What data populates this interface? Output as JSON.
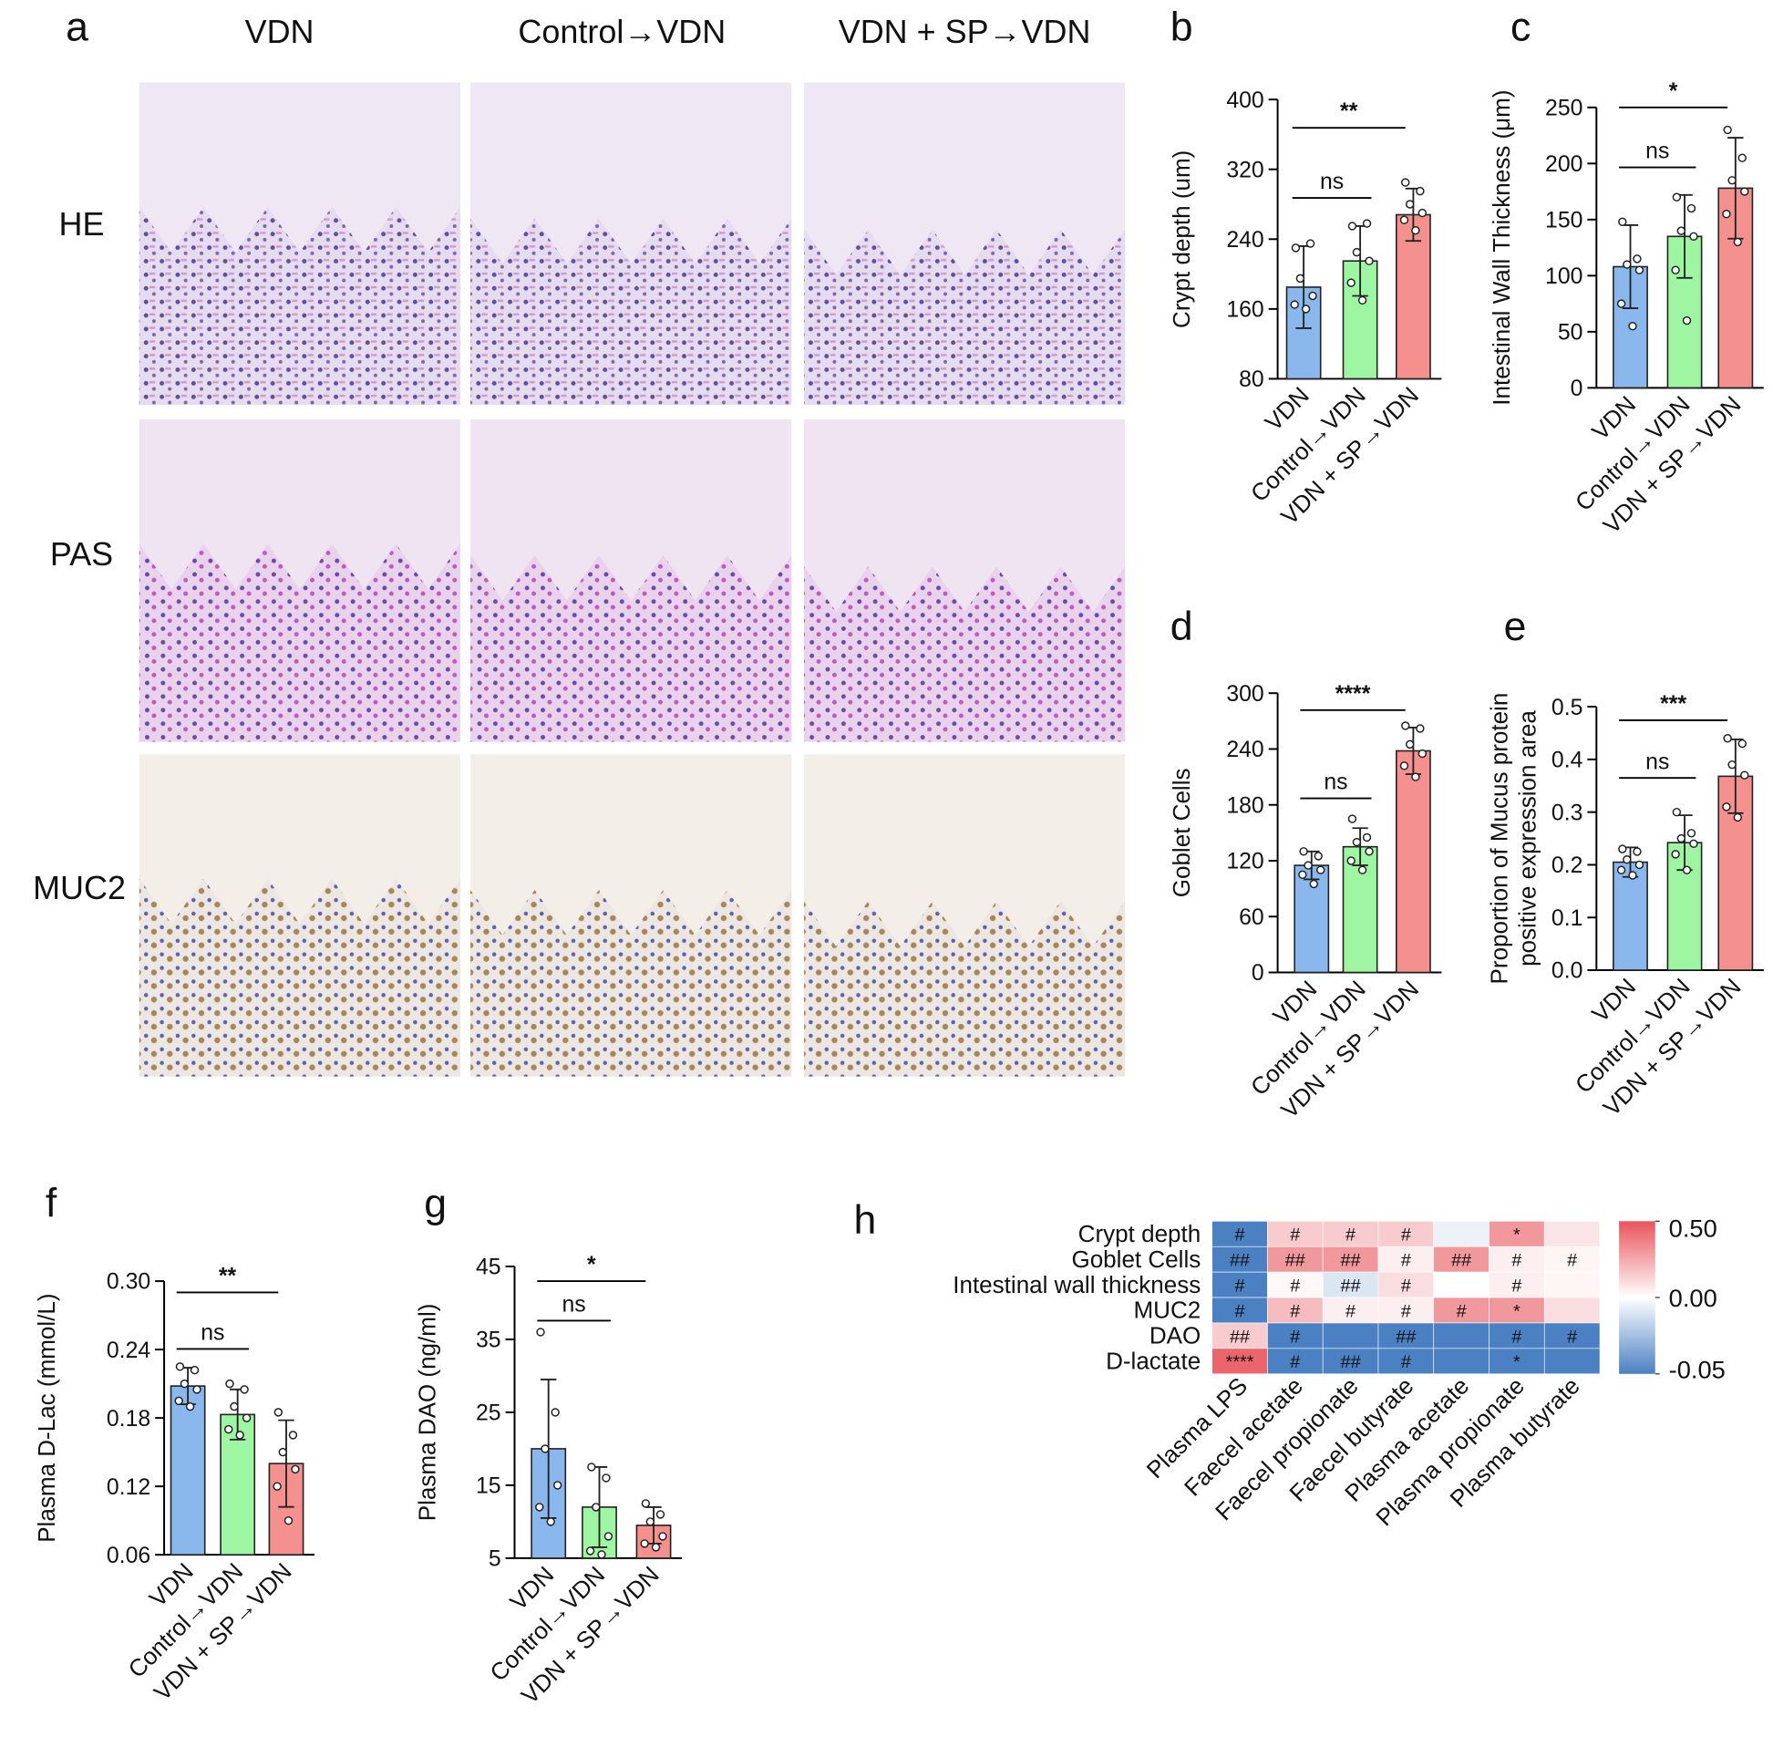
{
  "figure_a": {
    "panel": "a",
    "columns": [
      "VDN",
      "Control→VDN",
      "VDN + SP→VDN"
    ],
    "rows": [
      "HE",
      "PAS",
      "MUC2"
    ]
  },
  "chart_data": [
    {
      "type": "bar",
      "panel": "b",
      "ylabel": "Crypt depth (um)",
      "categories": [
        "VDN",
        "Control→VDN",
        "VDN + SP→VDN"
      ],
      "colors": [
        "#8ab8ec",
        "#9ef5a2",
        "#f4908e"
      ],
      "values": [
        185,
        215,
        268
      ],
      "errors": [
        47,
        40,
        30
      ],
      "points": [
        [
          230,
          235,
          195,
          175,
          165,
          160
        ],
        [
          255,
          258,
          225,
          215,
          190,
          170
        ],
        [
          305,
          295,
          280,
          270,
          262,
          250
        ]
      ],
      "ylim": [
        80,
        400
      ],
      "yticks": [
        80,
        160,
        240,
        320,
        400
      ],
      "annotations": [
        "**",
        "ns"
      ]
    },
    {
      "type": "bar",
      "panel": "c",
      "ylabel": "Intestinal Wall Thickness (μm)",
      "categories": [
        "VDN",
        "Control→VDN",
        "VDN + SP→VDN"
      ],
      "colors": [
        "#8ab8ec",
        "#9ef5a2",
        "#f4908e"
      ],
      "values": [
        108,
        135,
        178
      ],
      "errors": [
        37,
        37,
        45
      ],
      "points": [
        [
          148,
          115,
          110,
          105,
          75,
          55
        ],
        [
          170,
          160,
          140,
          135,
          105,
          60
        ],
        [
          230,
          205,
          185,
          175,
          155,
          130
        ]
      ],
      "ylim": [
        0,
        250
      ],
      "yticks": [
        0,
        50,
        100,
        150,
        200,
        250
      ],
      "annotations": [
        "*",
        "ns"
      ]
    },
    {
      "type": "bar",
      "panel": "d",
      "ylabel": "Goblet Cells",
      "categories": [
        "VDN",
        "Control→VDN",
        "VDN + SP→VDN"
      ],
      "colors": [
        "#8ab8ec",
        "#9ef5a2",
        "#f4908e"
      ],
      "values": [
        115,
        135,
        238
      ],
      "errors": [
        15,
        20,
        25
      ],
      "points": [
        [
          130,
          125,
          115,
          110,
          105,
          95
        ],
        [
          165,
          145,
          140,
          130,
          120,
          110
        ],
        [
          265,
          262,
          245,
          235,
          222,
          210
        ]
      ],
      "ylim": [
        0,
        300
      ],
      "yticks": [
        0,
        60,
        120,
        180,
        240,
        300
      ],
      "annotations": [
        "****",
        "ns"
      ]
    },
    {
      "type": "bar",
      "panel": "e",
      "ylabel": [
        "Proportion of Mucus protein",
        "positive expression area"
      ],
      "categories": [
        "VDN",
        "Control→VDN",
        "VDN + SP→VDN"
      ],
      "colors": [
        "#8ab8ec",
        "#9ef5a2",
        "#f4908e"
      ],
      "values": [
        0.205,
        0.242,
        0.368
      ],
      "errors": [
        0.028,
        0.052,
        0.07
      ],
      "points": [
        [
          0.23,
          0.225,
          0.21,
          0.2,
          0.19,
          0.18
        ],
        [
          0.3,
          0.26,
          0.25,
          0.24,
          0.22,
          0.19
        ],
        [
          0.44,
          0.43,
          0.39,
          0.37,
          0.31,
          0.29
        ]
      ],
      "ylim": [
        0,
        0.5
      ],
      "yticks": [
        {
          "value": 0,
          "label": "0.0"
        },
        0.1,
        0.2,
        0.3,
        0.4,
        0.5
      ],
      "annotations": [
        "***",
        "ns"
      ]
    },
    {
      "type": "bar",
      "panel": "f",
      "ylabel": "Plasma D-Lac (mmol/L)",
      "categories": [
        "VDN",
        "Control→VDN",
        "VDN + SP→VDN"
      ],
      "colors": [
        "#8ab8ec",
        "#9ef5a2",
        "#f4908e"
      ],
      "values": [
        0.208,
        0.183,
        0.14
      ],
      "errors": [
        0.016,
        0.022,
        0.038
      ],
      "points": [
        [
          0.225,
          0.222,
          0.21,
          0.205,
          0.195,
          0.19
        ],
        [
          0.21,
          0.205,
          0.19,
          0.18,
          0.17,
          0.165
        ],
        [
          0.185,
          0.165,
          0.15,
          0.135,
          0.12,
          0.09
        ]
      ],
      "ylim": [
        0.06,
        0.3
      ],
      "yticks": [
        0.06,
        0.12,
        0.18,
        0.24,
        {
          "value": 0.3,
          "label": "0.30"
        }
      ],
      "annotations": [
        "**",
        "ns"
      ]
    },
    {
      "type": "bar",
      "panel": "g",
      "ylabel": "Plasma DAO (ng/ml)",
      "categories": [
        "VDN",
        "Control→VDN",
        "VDN + SP→VDN"
      ],
      "colors": [
        "#8ab8ec",
        "#9ef5a2",
        "#f4908e"
      ],
      "values": [
        20,
        12,
        9.5
      ],
      "errors": [
        9.5,
        5.5,
        2.5
      ],
      "points": [
        [
          36,
          25,
          20,
          15,
          12,
          10
        ],
        [
          17.5,
          16,
          12,
          8,
          6,
          5.5
        ],
        [
          12.5,
          11,
          10,
          8,
          7,
          6.5
        ]
      ],
      "ylim": [
        5,
        45
      ],
      "yticks": [
        5,
        15,
        25,
        35,
        45
      ],
      "annotations": [
        "*",
        "ns"
      ]
    },
    {
      "type": "heatmap",
      "panel": "h",
      "rows": [
        "Crypt depth",
        "Goblet Cells",
        "Intestinal wall thickness",
        "MUC2",
        "DAO",
        "D-lactate"
      ],
      "columns": [
        "Plasma LPS",
        "Faecel acetate",
        "Faecel propionate",
        "Faecel butyrate",
        "Plasma acetate",
        "Plasma propionate",
        "Plasma butyrate"
      ],
      "values": [
        [
          -0.05,
          0.15,
          0.15,
          0.15,
          -0.005,
          0.3,
          0.08
        ],
        [
          -0.05,
          0.3,
          0.3,
          0.05,
          0.3,
          0.05,
          0.03
        ],
        [
          -0.05,
          0.02,
          -0.01,
          0.1,
          0,
          0.05,
          0.03
        ],
        [
          -0.05,
          0.2,
          0.05,
          0.05,
          0.3,
          0.3,
          0.1
        ],
        [
          0.15,
          -0.05,
          -0.05,
          -0.05,
          -0.05,
          -0.05,
          -0.05
        ],
        [
          0.45,
          -0.05,
          -0.05,
          -0.05,
          -0.05,
          -0.05,
          -0.05
        ]
      ],
      "annotations": [
        [
          "#",
          "#",
          "#",
          "#",
          null,
          "*",
          null
        ],
        [
          "##",
          "##",
          "##",
          "#",
          "##",
          "#",
          "#"
        ],
        [
          "#",
          "#",
          "##",
          "#",
          null,
          "#",
          null
        ],
        [
          "#",
          "#",
          "#",
          "#",
          "#",
          "*",
          null
        ],
        [
          "##",
          "#",
          null,
          "##",
          null,
          "#",
          "#"
        ],
        [
          "****",
          "#",
          "##",
          "#",
          null,
          "*",
          null
        ]
      ],
      "zlim": [
        -0.05,
        0.5
      ],
      "zticks": [
        {
          "value": 0.5,
          "label": "0.50"
        },
        {
          "value": 0,
          "label": "0.00"
        },
        -0.05
      ],
      "colors": [
        "#4b80c3",
        "#ffffff",
        "#e8545c"
      ]
    }
  ]
}
